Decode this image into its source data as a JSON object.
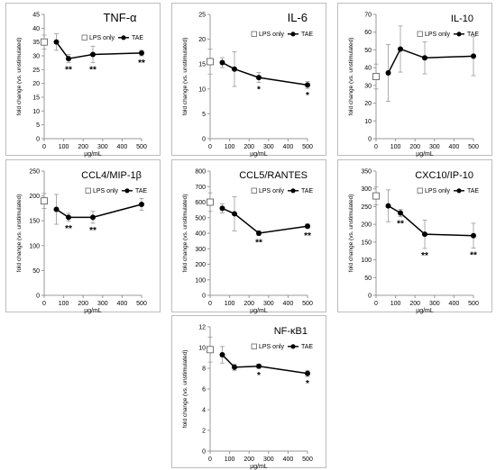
{
  "x_unit_label": "µg/mL",
  "chart_data": [
    {
      "type": "line",
      "title": "TNF-α",
      "ylabel": "fold change (vs. unstimulated)",
      "xlabel": "",
      "ylim": [
        0,
        45
      ],
      "yticks": [
        0,
        5,
        10,
        15,
        20,
        25,
        30,
        35,
        40,
        45
      ],
      "xlim": [
        0,
        500
      ],
      "xticks": [
        0,
        100,
        200,
        300,
        400,
        500
      ],
      "legend": {
        "position": "top",
        "lps": "LPS only",
        "tae": "TAE"
      },
      "lps_only": {
        "x": 0,
        "y": 35,
        "err": 2.5
      },
      "tae": {
        "x": [
          62.5,
          125,
          250,
          500
        ],
        "y": [
          35,
          29,
          30.5,
          31
        ],
        "err": [
          3,
          1.5,
          3,
          1
        ]
      },
      "significance": [
        "",
        "**",
        "**",
        "**"
      ]
    },
    {
      "type": "line",
      "title": "IL-6",
      "ylabel": "fold change (vs. unstimulated)",
      "xlabel": "",
      "ylim": [
        0,
        25
      ],
      "yticks": [
        0,
        5,
        10,
        15,
        20,
        25
      ],
      "xlim": [
        0,
        500
      ],
      "xticks": [
        0,
        100,
        200,
        300,
        400,
        500
      ],
      "legend": {
        "position": "top-right",
        "lps": "LPS only",
        "tae": "TAE"
      },
      "lps_only": {
        "x": 0,
        "y": 15.5,
        "err": 2.5
      },
      "tae": {
        "x": [
          62.5,
          125,
          250,
          500
        ],
        "y": [
          15.3,
          14,
          12.3,
          10.8
        ],
        "err": [
          1,
          3.5,
          1,
          0.7
        ]
      },
      "significance": [
        "",
        "",
        "*",
        "*"
      ]
    },
    {
      "type": "line",
      "title": "IL-10",
      "ylabel": "fold change (vs. unstimulated)",
      "xlabel": "",
      "ylim": [
        0,
        70
      ],
      "yticks": [
        0,
        10,
        20,
        30,
        40,
        50,
        60,
        70
      ],
      "xlim": [
        0,
        500
      ],
      "xticks": [
        0,
        100,
        200,
        300,
        400,
        500
      ],
      "legend": {
        "position": "top-right",
        "lps": "LPS only",
        "tae": "TAE"
      },
      "lps_only": {
        "x": 0,
        "y": 35,
        "err": 7
      },
      "tae": {
        "x": [
          62.5,
          125,
          250,
          500
        ],
        "y": [
          37,
          50.5,
          45.5,
          46.5
        ],
        "err": [
          16,
          13,
          9,
          11
        ]
      },
      "significance": [
        "",
        "",
        "",
        ""
      ]
    },
    {
      "type": "line",
      "title": "CCL4/MIP-1β",
      "ylabel": "fold change (vs. unstimulated)",
      "xlabel": "",
      "ylim": [
        0,
        250
      ],
      "yticks": [
        0,
        50,
        100,
        150,
        200,
        250
      ],
      "xlim": [
        0,
        500
      ],
      "xticks": [
        0,
        100,
        200,
        300,
        400,
        500
      ],
      "legend": {
        "position": "top-right",
        "lps": "LPS only",
        "tae": "TAE"
      },
      "lps_only": {
        "x": 0,
        "y": 190,
        "err": 15
      },
      "tae": {
        "x": [
          62.5,
          125,
          250,
          500
        ],
        "y": [
          173,
          157,
          157,
          183
        ],
        "err": [
          30,
          8,
          12,
          12
        ]
      },
      "significance": [
        "",
        "**",
        "**",
        ""
      ]
    },
    {
      "type": "line",
      "title": "CCL5/RANTES",
      "ylabel": "fold change (vs. unstimulated)",
      "xlabel": "",
      "ylim": [
        0,
        800
      ],
      "yticks": [
        0,
        100,
        200,
        300,
        400,
        500,
        600,
        700,
        800
      ],
      "xlim": [
        0,
        500
      ],
      "xticks": [
        0,
        100,
        200,
        300,
        400,
        500
      ],
      "legend": {
        "position": "top-right",
        "lps": "LPS only",
        "tae": "TAE"
      },
      "lps_only": {
        "x": 0,
        "y": 600,
        "err": 60
      },
      "tae": {
        "x": [
          62.5,
          125,
          250,
          500
        ],
        "y": [
          560,
          525,
          400,
          445
        ],
        "err": [
          30,
          110,
          15,
          15
        ]
      },
      "significance": [
        "",
        "",
        "**",
        "**"
      ]
    },
    {
      "type": "line",
      "title": "CXC10/IP-10",
      "ylabel": "fold change (vs. unstimulated)",
      "xlabel": "",
      "ylim": [
        0,
        350
      ],
      "yticks": [
        0,
        50,
        100,
        150,
        200,
        250,
        300,
        350
      ],
      "xlim": [
        0,
        500
      ],
      "xticks": [
        0,
        100,
        200,
        300,
        400,
        500
      ],
      "legend": {
        "position": "top-right",
        "lps": "LPS only",
        "tae": "TAE"
      },
      "lps_only": {
        "x": 0,
        "y": 280,
        "err": 25
      },
      "tae": {
        "x": [
          62.5,
          125,
          250,
          500
        ],
        "y": [
          252,
          232,
          172,
          168
        ],
        "err": [
          45,
          10,
          40,
          35
        ]
      },
      "significance": [
        "",
        "**",
        "**",
        "**"
      ]
    },
    {
      "type": "line",
      "title": "NF-κB1",
      "ylabel": "fold change (vs. unstimulated)",
      "xlabel": "",
      "ylim": [
        0,
        12
      ],
      "yticks": [
        0,
        2,
        4,
        6,
        8,
        10,
        12
      ],
      "xlim": [
        0,
        500
      ],
      "xticks": [
        0,
        100,
        200,
        300,
        400,
        500
      ],
      "legend": {
        "position": "top-right",
        "lps": "LPS only",
        "tae": "TAE"
      },
      "lps_only": {
        "x": 0,
        "y": 9.8,
        "err": 1.2
      },
      "tae": {
        "x": [
          62.5,
          125,
          250,
          500
        ],
        "y": [
          9.3,
          8.1,
          8.2,
          7.5
        ],
        "err": [
          0.8,
          0.3,
          0.2,
          0.3
        ]
      },
      "significance": [
        "",
        "",
        "*",
        "*"
      ]
    }
  ]
}
